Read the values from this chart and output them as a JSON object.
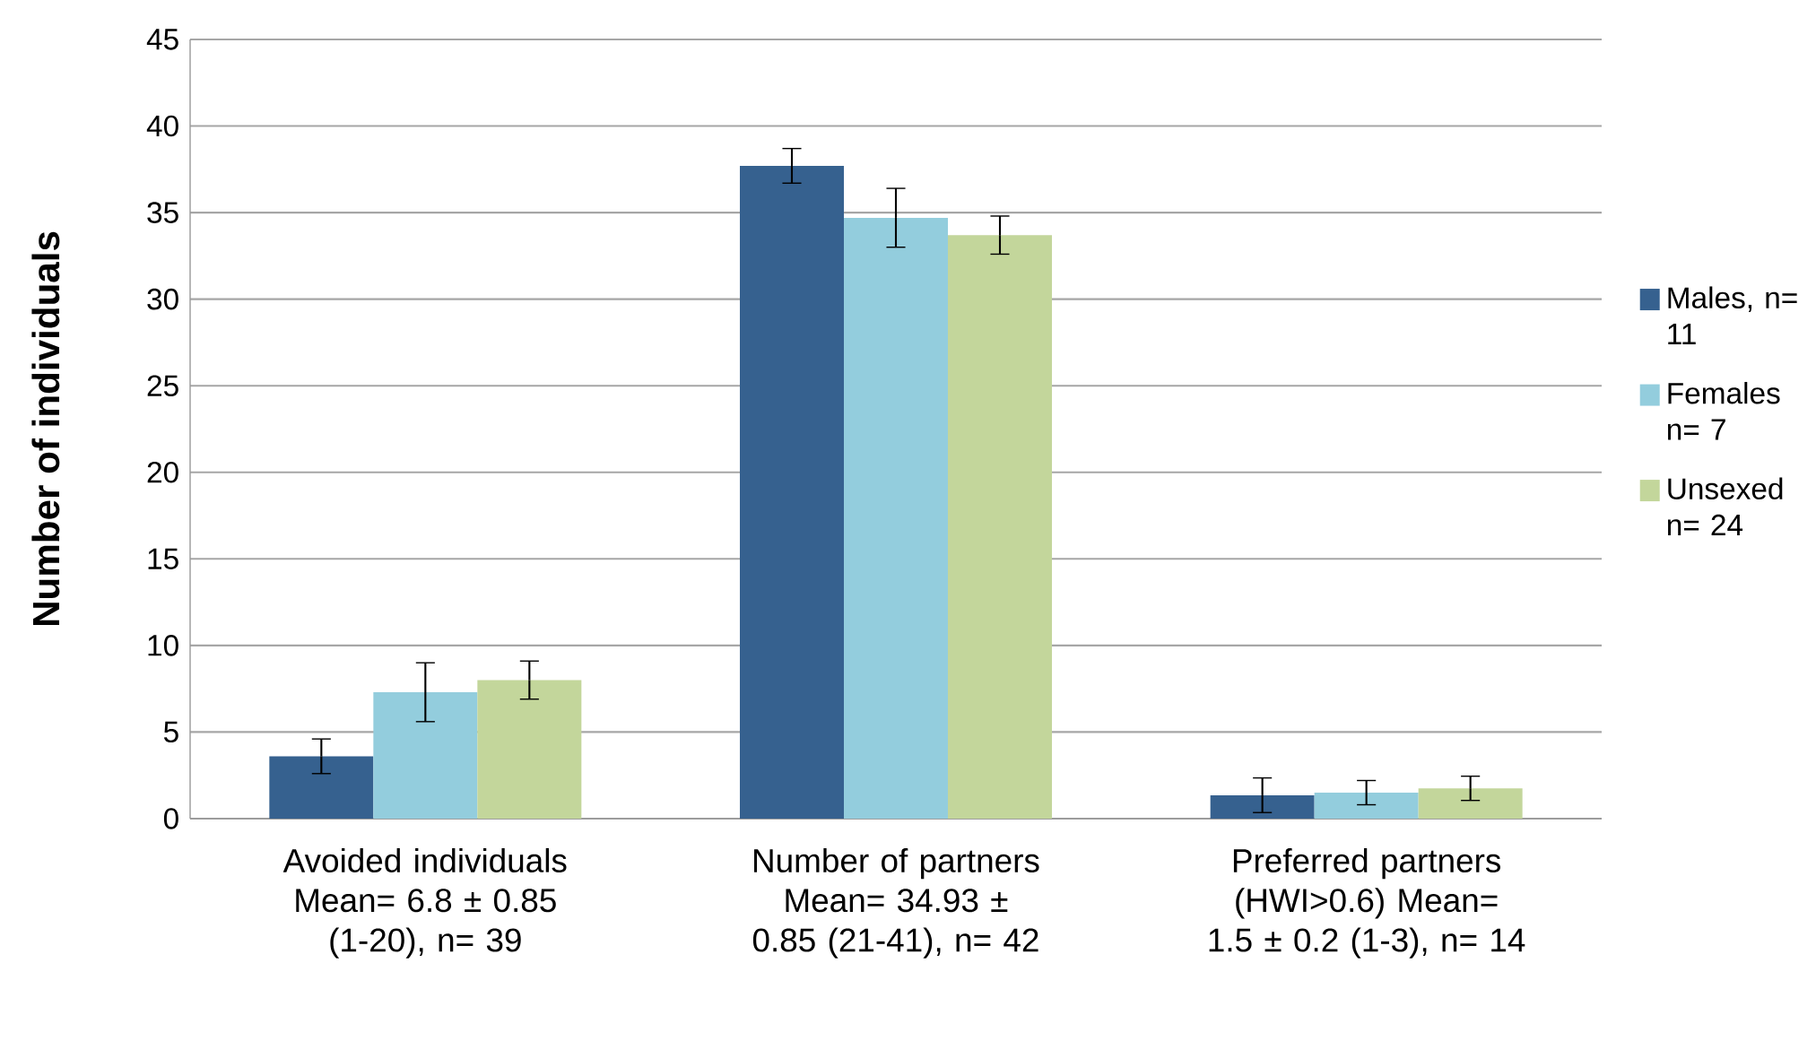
{
  "chart_data": {
    "type": "bar",
    "ylabel": "Number of individuals",
    "categories": [
      "Avoided individuals Mean= 6.8 ± 0.85 (1-20), n= 39",
      "Number of partners Mean= 34.93 ± 0.85 (21-41), n= 42",
      "Preferred partners (HWI>0.6) Mean= 1.5 ± 0.2 (1-3), n= 14"
    ],
    "series": [
      {
        "name": "Males, n= 11",
        "color": "#36618f",
        "values": [
          3.6,
          37.7,
          1.35
        ],
        "errors": [
          1.0,
          1.0,
          1.0
        ]
      },
      {
        "name": "Females n= 7",
        "color": "#93cddd",
        "values": [
          7.3,
          34.7,
          1.5
        ],
        "errors": [
          1.7,
          1.7,
          0.7
        ]
      },
      {
        "name": "Unsexed n= 24",
        "color": "#c3d69b",
        "values": [
          8.0,
          33.7,
          1.75
        ],
        "errors": [
          1.1,
          1.1,
          0.7
        ]
      }
    ],
    "ylim": [
      0,
      45
    ],
    "yticks": [
      0,
      5,
      10,
      15,
      20,
      25,
      30,
      35,
      40,
      45
    ],
    "grid": "y",
    "legend": "right"
  }
}
